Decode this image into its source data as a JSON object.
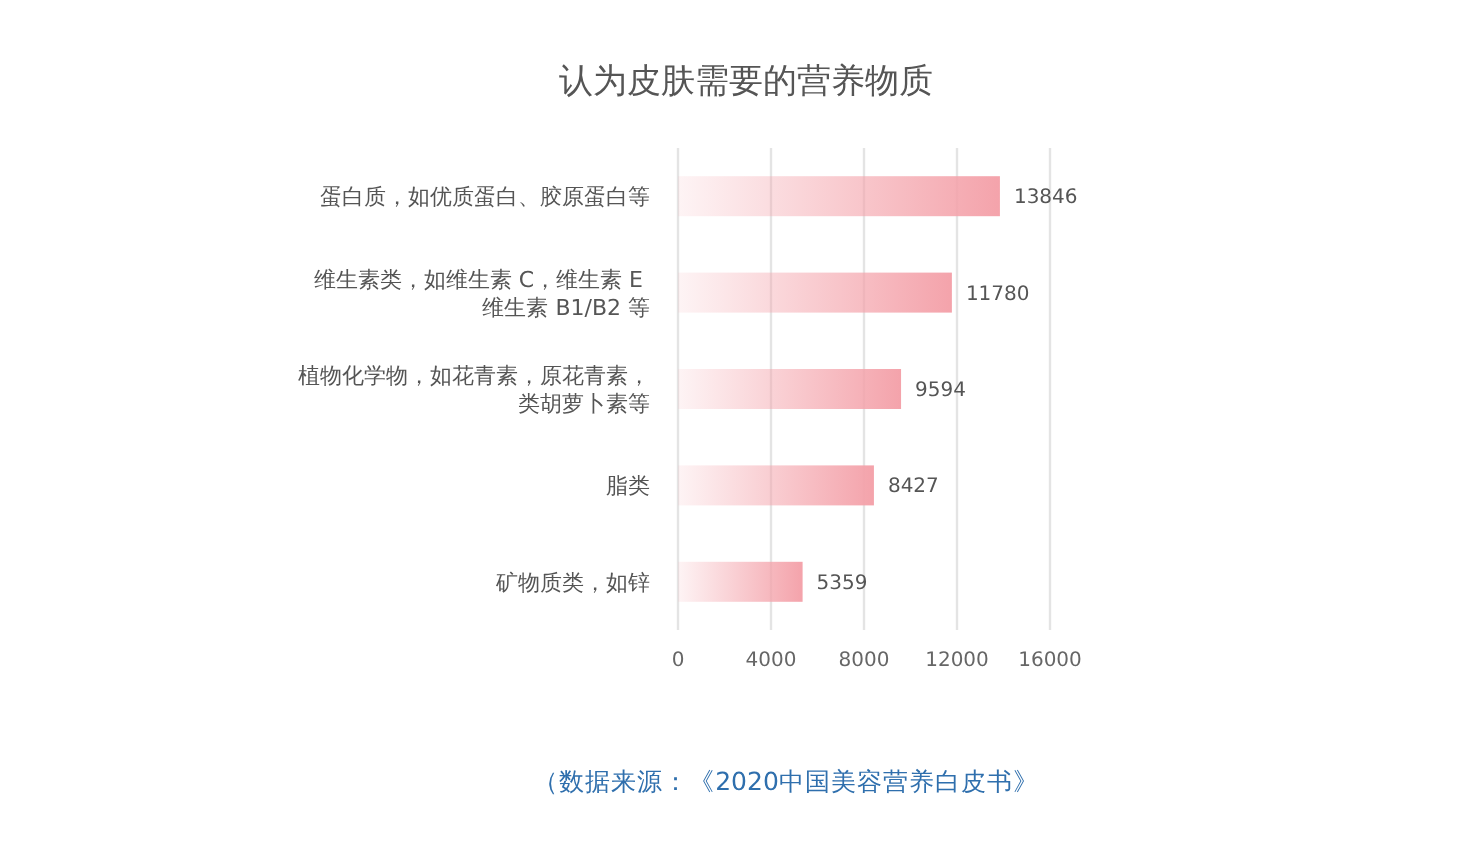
{
  "chart_data": {
    "type": "bar",
    "orientation": "horizontal",
    "title": "认为皮肤需要的营养物质",
    "categories": [
      "蛋白质，如优质蛋白、胶原蛋白等",
      "维生素类，如维生素 C，维生素 E 维生素 B1/B2 等",
      "植物化学物，如花青素，原花青素，类胡萝卜素等",
      "脂类",
      "矿物质类，如锌"
    ],
    "values": [
      13846,
      11780,
      9594,
      8427,
      5359
    ],
    "color": "#f4a3ab",
    "xlim": [
      0,
      16000
    ],
    "xticks": [
      0,
      4000,
      8000,
      12000,
      16000
    ],
    "grid": "x",
    "data_labels": true,
    "annotations": [
      "（数据来源：《2020中国美容营养白皮书》"
    ]
  }
}
